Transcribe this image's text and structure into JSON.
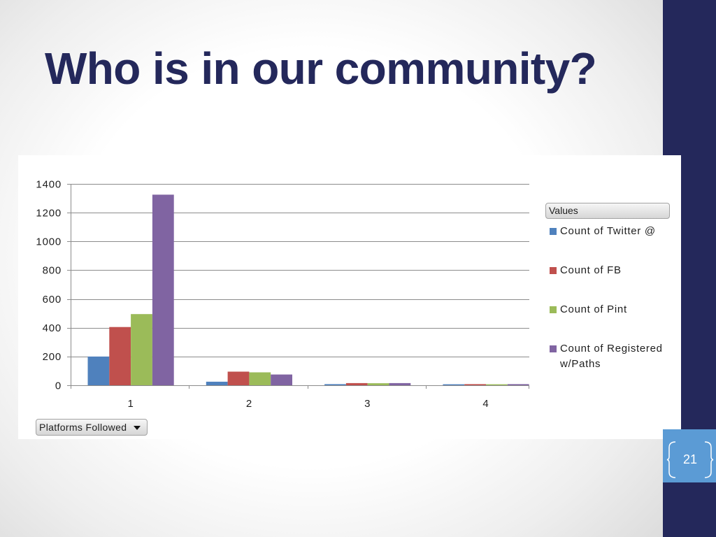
{
  "slide": {
    "title": "Who is in our community?",
    "page_number": "21"
  },
  "theme_colors": {
    "title_text": "#24285B",
    "side_band": "#24285B",
    "page_number_box": "#5B9BD5",
    "page_number_text": "#FFFFFF"
  },
  "icons": {
    "axis_field_button": "dropdown-arrow-icon"
  },
  "chart_data": {
    "type": "bar",
    "categories": [
      "1",
      "2",
      "3",
      "4"
    ],
    "series": [
      {
        "name": "Count of Twitter @",
        "color": "#4F81BD",
        "values": [
          200,
          25,
          8,
          7
        ]
      },
      {
        "name": "Count of FB",
        "color": "#C0504D",
        "values": [
          405,
          95,
          15,
          8
        ]
      },
      {
        "name": "Count of Pint",
        "color": "#9BBB59",
        "values": [
          495,
          90,
          14,
          7
        ]
      },
      {
        "name": "Count of Registered w/Paths",
        "color": "#8064A2",
        "values": [
          1325,
          75,
          15,
          8
        ]
      }
    ],
    "ylim": [
      0,
      1400
    ],
    "yticks": [
      0,
      200,
      400,
      600,
      800,
      1000,
      1200,
      1400
    ],
    "grid": true,
    "legend": "right",
    "legend_title": "Values",
    "axis_field_button": "Platforms Followed"
  }
}
